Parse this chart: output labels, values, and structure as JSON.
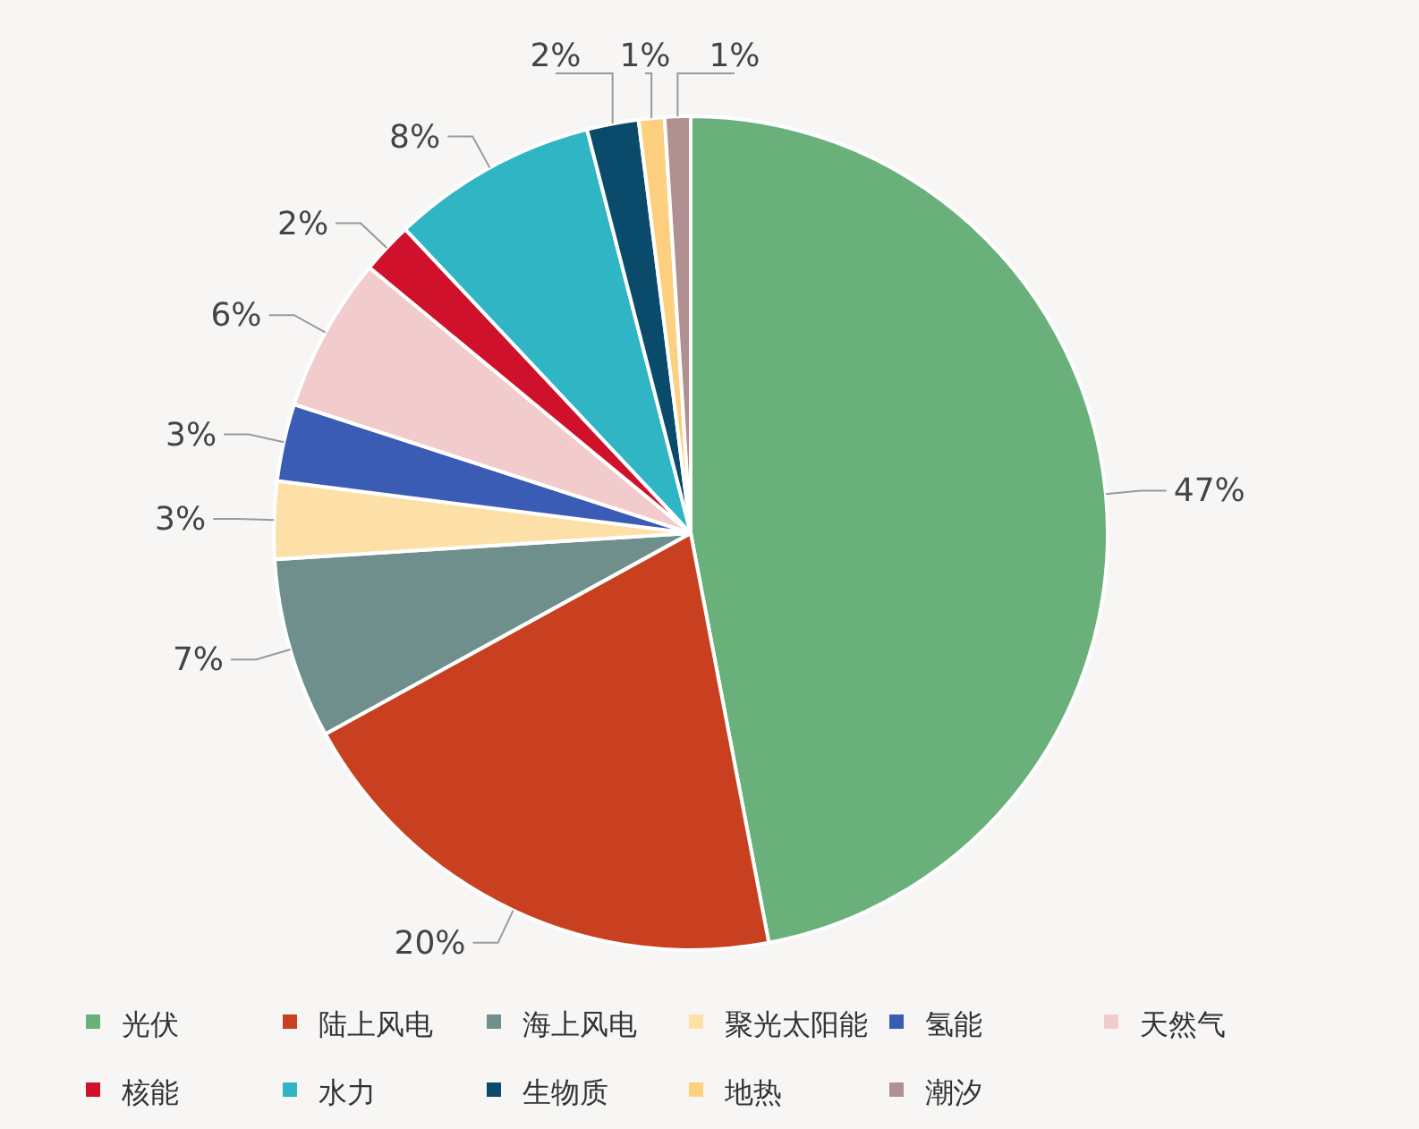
{
  "chart_data": {
    "type": "pie",
    "categories": [
      "光伏",
      "陆上风电",
      "海上风电",
      "聚光太阳能",
      "氢能",
      "天然气",
      "核能",
      "水力",
      "生物质",
      "地热",
      "潮汐"
    ],
    "values": [
      47,
      20,
      7,
      3,
      3,
      6,
      2,
      8,
      2,
      1,
      1
    ],
    "colors": [
      "#6ab07a",
      "#c8401f",
      "#6f8f8c",
      "#fde0a8",
      "#3a5cb5",
      "#f2cccc",
      "#d0112b",
      "#30b5c5",
      "#0a4a6a",
      "#fdd080",
      "#b09090"
    ],
    "value_labels": [
      "47%",
      "20%",
      "7%",
      "3%",
      "3%",
      "6%",
      "2%",
      "8%",
      "2%",
      "1%",
      "1%"
    ],
    "legend": "bottom"
  }
}
